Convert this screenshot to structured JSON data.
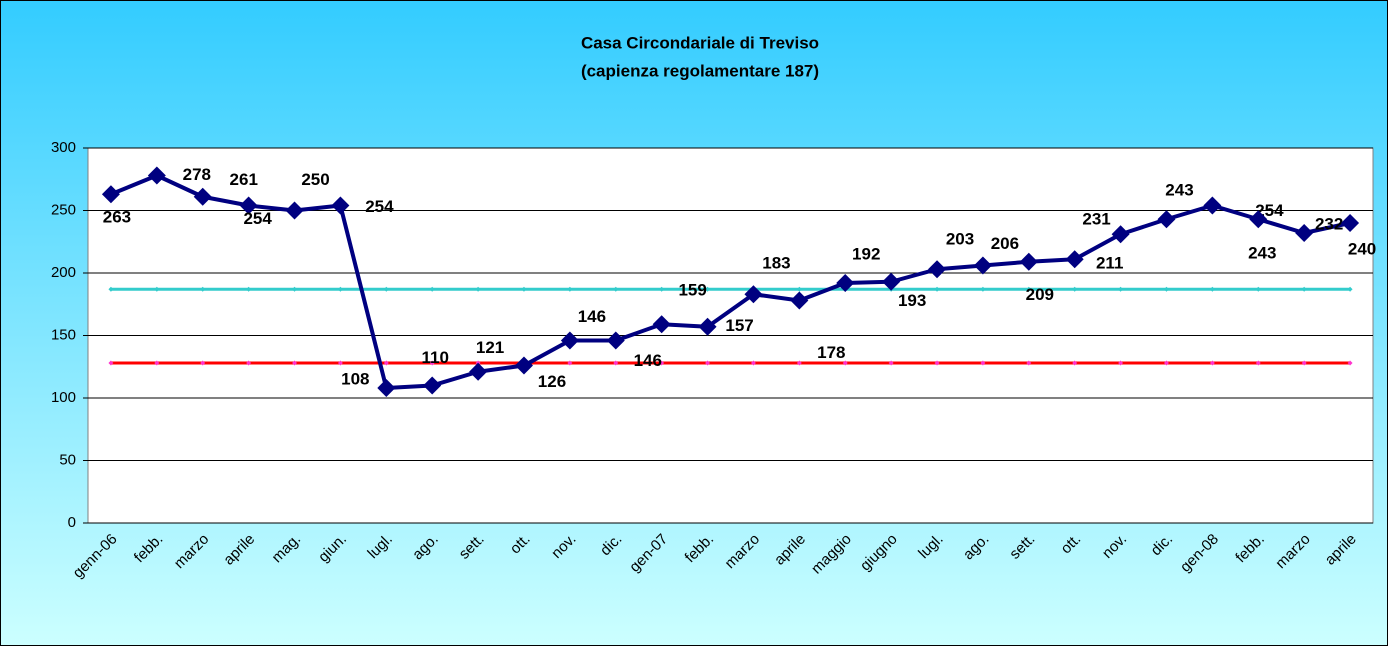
{
  "chart_data": {
    "type": "line",
    "title": "Casa Circondariale di Treviso",
    "subtitle": "(capienza regolamentare 187)",
    "categories": [
      "genn-06",
      "febb.",
      "marzo",
      "aprile",
      "mag.",
      "giun.",
      "lugl.",
      "ago.",
      "sett.",
      "ott.",
      "nov.",
      "dic.",
      "gen-07",
      "febb.",
      "marzo",
      "aprile",
      "maggio",
      "giugno",
      "lugl.",
      "ago.",
      "sett.",
      "ott.",
      "nov.",
      "dic.",
      "gen-08",
      "febb.",
      "marzo",
      "aprile"
    ],
    "series": [
      {
        "color": "#ff0000",
        "marker_color": "#ff33cc",
        "values": [
          128,
          128,
          128,
          128,
          128,
          128,
          128,
          128,
          128,
          128,
          128,
          128,
          128,
          128,
          128,
          128,
          128,
          128,
          128,
          128,
          128,
          128,
          128,
          128,
          128,
          128,
          128,
          128
        ]
      },
      {
        "color": "#33cccc",
        "marker_color": "#33cccc",
        "values": [
          187,
          187,
          187,
          187,
          187,
          187,
          187,
          187,
          187,
          187,
          187,
          187,
          187,
          187,
          187,
          187,
          187,
          187,
          187,
          187,
          187,
          187,
          187,
          187,
          187,
          187,
          187,
          187
        ]
      },
      {
        "color": "#000080",
        "marker_color": "#000080",
        "data_labels": true,
        "values": [
          263,
          278,
          261,
          254,
          250,
          254,
          108,
          110,
          121,
          126,
          146,
          146,
          159,
          157,
          183,
          178,
          192,
          193,
          203,
          206,
          209,
          211,
          231,
          243,
          254,
          243,
          232,
          240
        ]
      }
    ],
    "ylim": [
      0,
      300
    ],
    "yticks": [
      0,
      50,
      100,
      150,
      200,
      250,
      300
    ],
    "grid": true
  }
}
